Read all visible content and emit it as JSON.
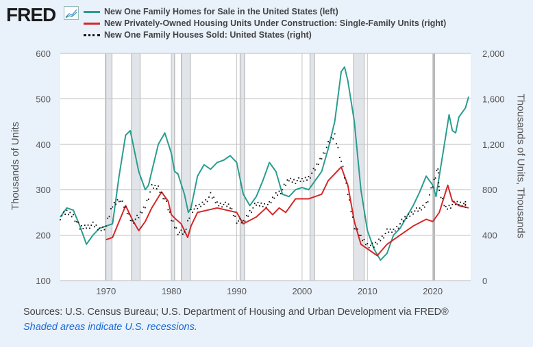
{
  "header": {
    "logo": "FRED"
  },
  "chart_data": {
    "type": "line",
    "legend_placement": "top",
    "series": [
      {
        "name": "New One Family Homes for Sale in the United States (left)",
        "axis": "left",
        "color": "#2a9d8f",
        "style": "line",
        "x": [
          1963,
          1964,
          1965,
          1966,
          1967,
          1968,
          1969,
          1970,
          1971,
          1972,
          1973,
          1973.7,
          1974,
          1975,
          1976,
          1976.5,
          1977,
          1978,
          1979,
          1980,
          1980.5,
          1981,
          1982,
          1982.6,
          1983,
          1984,
          1985,
          1986,
          1987,
          1988,
          1989,
          1990,
          1991,
          1992,
          1993,
          1994,
          1995,
          1996,
          1997,
          1998,
          1999,
          2000,
          2001,
          2002,
          2003,
          2004,
          2005,
          2006,
          2006.5,
          2007,
          2008,
          2009,
          2010,
          2011,
          2012,
          2013,
          2014,
          2015,
          2016,
          2017,
          2018,
          2019,
          2020,
          2020.5,
          2021,
          2022,
          2022.5,
          2023,
          2023.5,
          2024,
          2025,
          2025.5
        ],
        "y": [
          240,
          260,
          255,
          220,
          180,
          200,
          215,
          220,
          225,
          330,
          420,
          430,
          410,
          340,
          300,
          310,
          340,
          400,
          425,
          380,
          340,
          335,
          290,
          250,
          260,
          330,
          355,
          345,
          360,
          365,
          375,
          360,
          290,
          265,
          285,
          320,
          360,
          340,
          290,
          285,
          300,
          305,
          300,
          320,
          340,
          390,
          450,
          560,
          570,
          540,
          450,
          300,
          210,
          170,
          145,
          160,
          200,
          215,
          240,
          265,
          295,
          330,
          310,
          285,
          330,
          420,
          465,
          430,
          425,
          460,
          480,
          505
        ]
      },
      {
        "name": "New Privately-Owned Housing Units Under Construction: Single-Family Units (right)",
        "axis": "right",
        "color": "#d62728",
        "style": "line",
        "x": [
          1970,
          1971,
          1972,
          1973,
          1974,
          1975,
          1976,
          1977,
          1978.5,
          1979.5,
          1980,
          1980.7,
          1981.5,
          1982.5,
          1983,
          1984,
          1987,
          1990,
          1991,
          1993,
          1994.5,
          1995.5,
          1996.5,
          1997.5,
          1999,
          2001,
          2002,
          2003,
          2004,
          2005,
          2006,
          2007,
          2008,
          2009,
          2010,
          2011.5,
          2013,
          2015,
          2017,
          2019,
          2020,
          2021,
          2022.3,
          2023,
          2024,
          2025.5
        ],
        "y": [
          360,
          380,
          520,
          660,
          540,
          440,
          520,
          640,
          780,
          700,
          580,
          540,
          500,
          380,
          480,
          600,
          640,
          600,
          500,
          560,
          640,
          580,
          640,
          600,
          720,
          720,
          740,
          760,
          880,
          940,
          1000,
          840,
          520,
          320,
          280,
          220,
          320,
          400,
          480,
          540,
          520,
          600,
          840,
          700,
          660,
          640
        ]
      },
      {
        "name": "New One Family Houses Sold: United States (right)",
        "axis": "right",
        "color": "#111111",
        "style": "dots",
        "x": [
          1963,
          1964,
          1965,
          1966,
          1967,
          1968,
          1969,
          1970,
          1971,
          1972,
          1973,
          1974,
          1975,
          1976,
          1977,
          1978,
          1979,
          1980,
          1981,
          1982,
          1983,
          1984,
          1985,
          1986,
          1987,
          1988,
          1989,
          1990,
          1991,
          1992,
          1993,
          1994,
          1995,
          1996,
          1997,
          1998,
          1999,
          2000,
          2001,
          2002,
          2003,
          2004,
          2005,
          2006,
          2007,
          2008,
          2009,
          2010,
          2011,
          2012,
          2013,
          2014,
          2015,
          2016,
          2017,
          2018,
          2019,
          2020,
          2020.8,
          2021,
          2022,
          2023,
          2024,
          2025
        ],
        "y": [
          560,
          600,
          575,
          460,
          480,
          490,
          450,
          480,
          660,
          720,
          630,
          520,
          560,
          660,
          820,
          820,
          720,
          540,
          430,
          410,
          620,
          640,
          690,
          750,
          680,
          670,
          650,
          530,
          510,
          610,
          670,
          670,
          670,
          760,
          800,
          890,
          880,
          880,
          910,
          980,
          1090,
          1200,
          1280,
          1050,
          770,
          480,
          380,
          320,
          300,
          370,
          430,
          440,
          500,
          560,
          610,
          620,
          680,
          830,
          1000,
          770,
          640,
          670,
          680,
          670
        ]
      }
    ],
    "recessions": [
      [
        1969.9,
        1970.9
      ],
      [
        1973.9,
        1975.2
      ],
      [
        1980.0,
        1980.5
      ],
      [
        1981.5,
        1982.9
      ],
      [
        1990.5,
        1991.2
      ],
      [
        2001.2,
        2001.9
      ],
      [
        2007.9,
        2009.5
      ],
      [
        2020.1,
        2020.3
      ]
    ],
    "xlim": [
      1963,
      2025.8
    ],
    "ylim_left": [
      100,
      600
    ],
    "ylim_right": [
      0,
      2000
    ],
    "x_ticks": [
      "1970",
      "1980",
      "1990",
      "2000",
      "2010",
      "2020"
    ],
    "left_ticks": [
      "100",
      "200",
      "300",
      "400",
      "500",
      "600"
    ],
    "right_ticks": [
      "0",
      "400",
      "800",
      "1,200",
      "1,600",
      "2,000"
    ],
    "ylabel_left": "Thousands of Units",
    "ylabel_right": "Thousands of Units, Thousands",
    "grid": true
  },
  "footer": {
    "sources": "Sources: U.S. Census Bureau; U.S. Department of Housing and Urban Development via FRED®",
    "note": "Shaded areas indicate U.S. recessions."
  }
}
